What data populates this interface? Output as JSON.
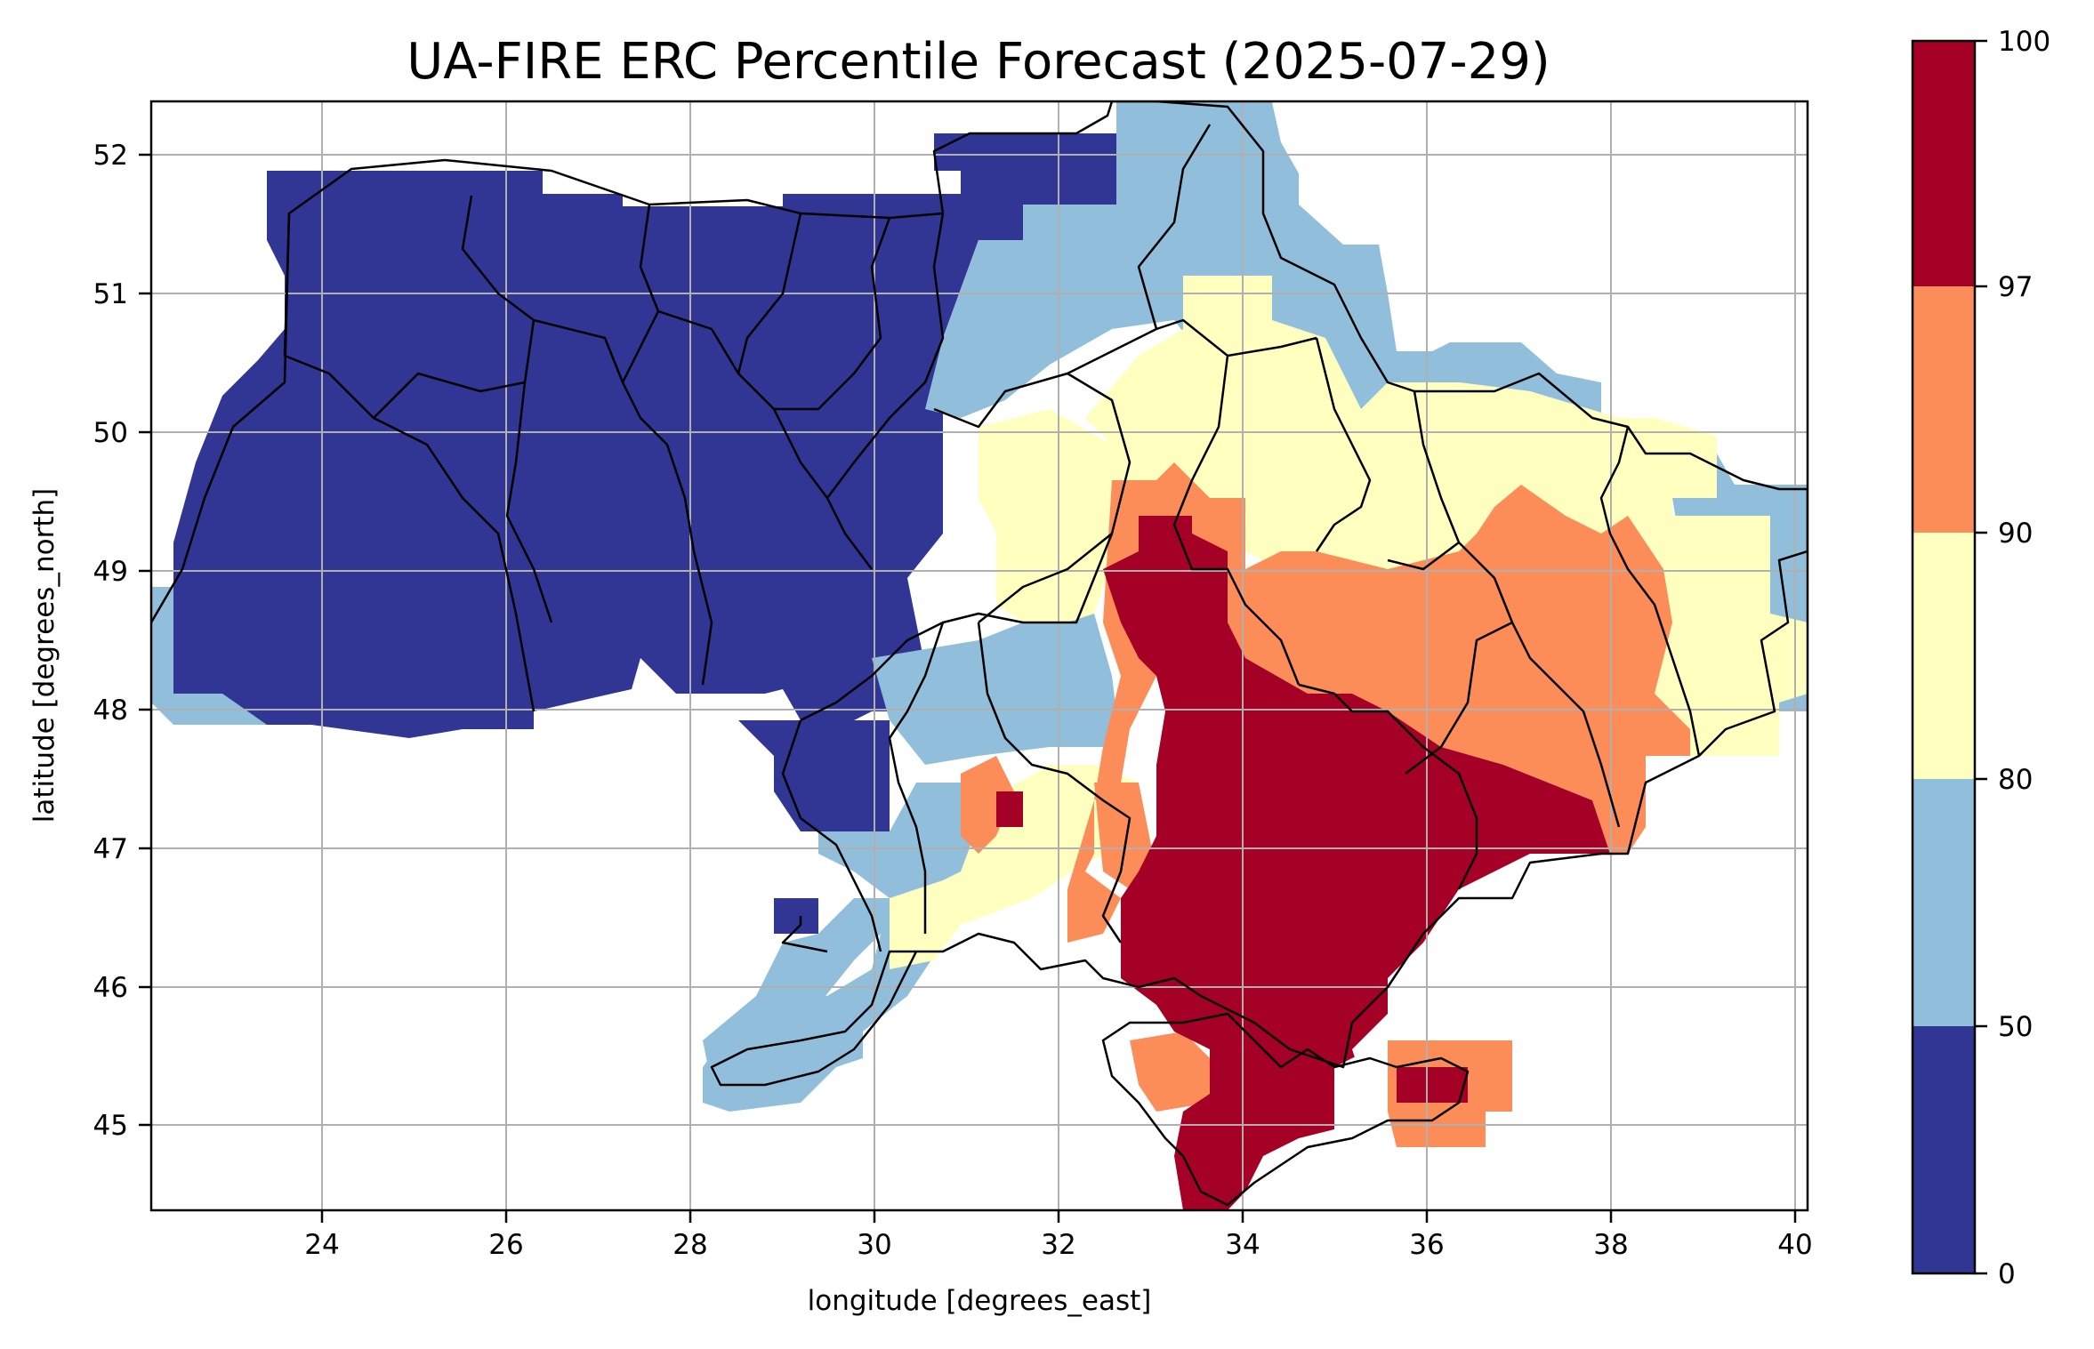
{
  "title": "UA-FIRE ERC Percentile Forecast (2025-07-29)",
  "xlabel": "longitude [degrees_east]",
  "ylabel": "latitude [degrees_north]",
  "x_ticks": [
    "24",
    "26",
    "28",
    "30",
    "32",
    "34",
    "36",
    "38",
    "40"
  ],
  "y_ticks": [
    "45",
    "46",
    "47",
    "48",
    "49",
    "50",
    "51",
    "52"
  ],
  "colorbar": {
    "ticks": [
      "0",
      "50",
      "80",
      "90",
      "97",
      "100"
    ],
    "bins": [
      {
        "range": "0-50",
        "color": "#313695"
      },
      {
        "range": "50-80",
        "color": "#91bfdb"
      },
      {
        "range": "80-90",
        "color": "#ffffbf"
      },
      {
        "range": "90-97",
        "color": "#fc8d59"
      },
      {
        "range": "97-100",
        "color": "#a50026"
      }
    ]
  },
  "map": {
    "grid": true,
    "xlim": [
      22.15,
      40.15
    ],
    "ylim": [
      44.35,
      52.4
    ],
    "region": "Ukraine",
    "regions_by_bin": {
      "0-50": "northern and western Ukraine",
      "50-80": "western edge, northeast, southwest coast",
      "80-90": "central-east, northeast, east",
      "90-97": "east (Dnipro-Donetsk area), eastern Crimea",
      "97-100": "south-central (Zaporizhzhia/Kherson) and central Crimea"
    }
  }
}
